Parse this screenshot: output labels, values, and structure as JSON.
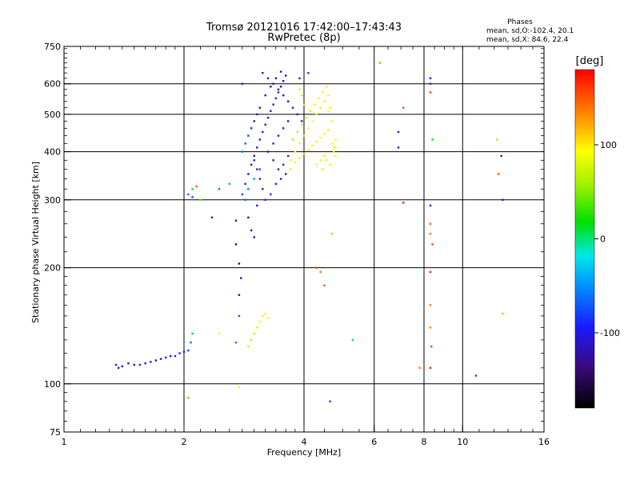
{
  "chart_data": {
    "type": "scatter",
    "title": "Tromsø 20121016 17:42:00–17:43:43",
    "subtitle": "RwPretec (8p)",
    "xlabel": "Frequency [MHz]",
    "ylabel": "Stationary phase Virtual Height [km]",
    "x_scale": "log",
    "y_scale": "log",
    "xlim": [
      1,
      16
    ],
    "ylim": [
      75,
      750
    ],
    "x_ticks": [
      1,
      2,
      4,
      6,
      8,
      10,
      16
    ],
    "y_ticks": [
      75,
      100,
      200,
      300,
      400,
      500,
      600,
      750
    ],
    "grid": true,
    "colorbar": {
      "label": "[deg]",
      "range": [
        -180,
        180
      ],
      "ticks": [
        -100,
        0,
        100
      ]
    },
    "stats": {
      "header": "Phases",
      "line1": "mean, sd,O:-102.4, 20.1",
      "line2": "mean, sd,X:  84.6, 22.4"
    },
    "series": [
      {
        "mode": "O",
        "points": [
          [
            1.35,
            112,
            -100
          ],
          [
            1.37,
            110,
            -110
          ],
          [
            1.4,
            111,
            -105
          ],
          [
            1.45,
            113,
            -100
          ],
          [
            1.5,
            112,
            -110
          ],
          [
            1.55,
            112,
            -105
          ],
          [
            1.6,
            113,
            -100
          ],
          [
            1.65,
            114,
            -108
          ],
          [
            1.7,
            115,
            -102
          ],
          [
            1.75,
            116,
            -100
          ],
          [
            1.8,
            117,
            -95
          ],
          [
            1.85,
            118,
            -100
          ],
          [
            1.9,
            118,
            -90
          ],
          [
            1.95,
            120,
            -95
          ],
          [
            2.0,
            121,
            -90
          ],
          [
            2.05,
            122,
            -80
          ],
          [
            2.08,
            128,
            -60
          ],
          [
            2.1,
            135,
            -40
          ],
          [
            2.05,
            310,
            -60
          ],
          [
            2.1,
            305,
            -80
          ],
          [
            2.35,
            270,
            -110
          ],
          [
            2.45,
            320,
            -60
          ],
          [
            2.6,
            330,
            -40
          ],
          [
            2.7,
            265,
            -130
          ],
          [
            2.7,
            230,
            -150
          ],
          [
            2.75,
            205,
            -140
          ],
          [
            2.75,
            170,
            -130
          ],
          [
            2.78,
            188,
            -110
          ],
          [
            2.8,
            310,
            -80
          ],
          [
            2.85,
            330,
            -90
          ],
          [
            2.9,
            350,
            -100
          ],
          [
            2.95,
            370,
            -110
          ],
          [
            3.0,
            390,
            -120
          ],
          [
            3.05,
            410,
            -115
          ],
          [
            3.1,
            430,
            -110
          ],
          [
            3.15,
            450,
            -100
          ],
          [
            3.2,
            470,
            -120
          ],
          [
            3.25,
            490,
            -115
          ],
          [
            3.3,
            510,
            -110
          ],
          [
            3.35,
            530,
            -105
          ],
          [
            3.4,
            550,
            -100
          ],
          [
            3.45,
            570,
            -110
          ],
          [
            3.5,
            590,
            -120
          ],
          [
            3.55,
            610,
            -115
          ],
          [
            3.6,
            630,
            -110
          ],
          [
            2.85,
            300,
            -70
          ],
          [
            2.9,
            320,
            -60
          ],
          [
            3.0,
            340,
            -50
          ],
          [
            3.1,
            360,
            -80
          ],
          [
            3.2,
            300,
            -90
          ],
          [
            3.3,
            310,
            -85
          ],
          [
            3.4,
            330,
            -95
          ],
          [
            3.5,
            340,
            -100
          ],
          [
            3.6,
            350,
            -110
          ],
          [
            3.7,
            360,
            -120
          ],
          [
            2.9,
            270,
            -130
          ],
          [
            2.95,
            250,
            -140
          ],
          [
            3.0,
            240,
            -120
          ],
          [
            3.05,
            290,
            -110
          ],
          [
            3.15,
            640,
            -115
          ],
          [
            3.25,
            620,
            -120
          ],
          [
            3.35,
            600,
            -125
          ],
          [
            3.45,
            580,
            -120
          ],
          [
            3.55,
            560,
            -115
          ],
          [
            3.65,
            540,
            -110
          ],
          [
            3.75,
            520,
            -105
          ],
          [
            3.85,
            500,
            -100
          ],
          [
            3.95,
            480,
            -95
          ],
          [
            2.8,
            400,
            -60
          ],
          [
            2.85,
            420,
            -70
          ],
          [
            2.9,
            440,
            -80
          ],
          [
            2.95,
            460,
            -90
          ],
          [
            3.0,
            480,
            -100
          ],
          [
            3.05,
            500,
            -110
          ],
          [
            3.1,
            520,
            -115
          ],
          [
            3.2,
            560,
            -120
          ],
          [
            3.3,
            590,
            -125
          ],
          [
            3.4,
            620,
            -130
          ],
          [
            3.5,
            645,
            -120
          ],
          [
            3.9,
            620,
            -100
          ],
          [
            4.1,
            640,
            -80
          ],
          [
            3.0,
            380,
            -100
          ],
          [
            3.05,
            360,
            -105
          ],
          [
            3.1,
            340,
            -110
          ],
          [
            3.15,
            320,
            -115
          ],
          [
            2.75,
            150,
            -70
          ],
          [
            2.7,
            128,
            -60
          ],
          [
            2.8,
            600,
            -100
          ],
          [
            6.9,
            450,
            -110
          ],
          [
            6.9,
            410,
            -100
          ],
          [
            8.3,
            620,
            -100
          ],
          [
            8.3,
            600,
            -110
          ],
          [
            8.3,
            290,
            -90
          ],
          [
            10.8,
            105,
            -80
          ],
          [
            12.5,
            390,
            -100
          ],
          [
            12.6,
            300,
            -110
          ],
          [
            3.35,
            420,
            -100
          ],
          [
            3.45,
            440,
            -95
          ],
          [
            3.55,
            460,
            -105
          ],
          [
            3.65,
            480,
            -110
          ],
          [
            3.25,
            400,
            -120
          ],
          [
            3.35,
            380,
            -125
          ],
          [
            3.45,
            360,
            -115
          ],
          [
            3.55,
            370,
            -100
          ],
          [
            3.65,
            390,
            -90
          ]
        ]
      },
      {
        "mode": "X",
        "points": [
          [
            2.1,
            320,
            20
          ],
          [
            2.2,
            300,
            40
          ],
          [
            3.05,
            140,
            80
          ],
          [
            3.1,
            145,
            90
          ],
          [
            3.15,
            150,
            85
          ],
          [
            3.0,
            135,
            75
          ],
          [
            2.95,
            130,
            70
          ],
          [
            3.2,
            152,
            95
          ],
          [
            3.25,
            148,
            90
          ],
          [
            2.9,
            125,
            70
          ],
          [
            3.7,
            380,
            85
          ],
          [
            3.8,
            400,
            90
          ],
          [
            3.9,
            420,
            95
          ],
          [
            4.0,
            440,
            100
          ],
          [
            4.1,
            460,
            95
          ],
          [
            4.2,
            480,
            90
          ],
          [
            4.3,
            500,
            85
          ],
          [
            4.4,
            520,
            80
          ],
          [
            4.5,
            540,
            85
          ],
          [
            4.6,
            560,
            90
          ],
          [
            3.7,
            360,
            95
          ],
          [
            3.8,
            375,
            100
          ],
          [
            3.9,
            385,
            105
          ],
          [
            4.0,
            395,
            100
          ],
          [
            4.1,
            405,
            95
          ],
          [
            4.2,
            415,
            90
          ],
          [
            4.3,
            425,
            85
          ],
          [
            4.4,
            435,
            90
          ],
          [
            4.5,
            445,
            95
          ],
          [
            4.6,
            455,
            100
          ],
          [
            4.7,
            420,
            90
          ],
          [
            4.8,
            410,
            85
          ],
          [
            4.5,
            390,
            80
          ],
          [
            4.4,
            380,
            90
          ],
          [
            4.3,
            370,
            100
          ],
          [
            3.75,
            430,
            60
          ],
          [
            3.85,
            450,
            65
          ],
          [
            3.95,
            470,
            70
          ],
          [
            4.05,
            490,
            75
          ],
          [
            4.15,
            510,
            80
          ],
          [
            4.25,
            530,
            85
          ],
          [
            4.35,
            550,
            90
          ],
          [
            4.45,
            570,
            95
          ],
          [
            4.55,
            590,
            100
          ],
          [
            4.65,
            520,
            85
          ],
          [
            3.95,
            560,
            70
          ],
          [
            3.9,
            580,
            75
          ],
          [
            4.0,
            530,
            80
          ],
          [
            4.6,
            510,
            95
          ],
          [
            4.7,
            480,
            90
          ],
          [
            4.75,
            400,
            85
          ],
          [
            4.8,
            390,
            90
          ],
          [
            4.65,
            370,
            85
          ],
          [
            4.55,
            380,
            80
          ],
          [
            4.45,
            360,
            75
          ],
          [
            2.75,
            98,
            100
          ],
          [
            2.05,
            92,
            130
          ],
          [
            2.15,
            325,
            150
          ],
          [
            4.3,
            200,
            160
          ],
          [
            4.4,
            195,
            140
          ],
          [
            4.7,
            245,
            120
          ],
          [
            4.5,
            180,
            150
          ],
          [
            6.2,
            680,
            130
          ],
          [
            7.1,
            520,
            150
          ],
          [
            7.1,
            295,
            170
          ],
          [
            7.8,
            110,
            140
          ],
          [
            8.3,
            260,
            150
          ],
          [
            8.3,
            245,
            140
          ],
          [
            8.4,
            230,
            160
          ],
          [
            8.3,
            195,
            170
          ],
          [
            8.3,
            160,
            140
          ],
          [
            8.3,
            140,
            130
          ],
          [
            8.35,
            125,
            160
          ],
          [
            8.3,
            110,
            170
          ],
          [
            8.4,
            430,
            20
          ],
          [
            8.3,
            570,
            160
          ],
          [
            12.2,
            430,
            110
          ],
          [
            12.3,
            350,
            150
          ],
          [
            12.6,
            152,
            120
          ],
          [
            5.3,
            130,
            -30
          ],
          [
            4.65,
            90,
            -80
          ],
          [
            2.45,
            135,
            90
          ],
          [
            4.75,
            410,
            100
          ],
          [
            4.8,
            430,
            95
          ]
        ]
      }
    ]
  }
}
